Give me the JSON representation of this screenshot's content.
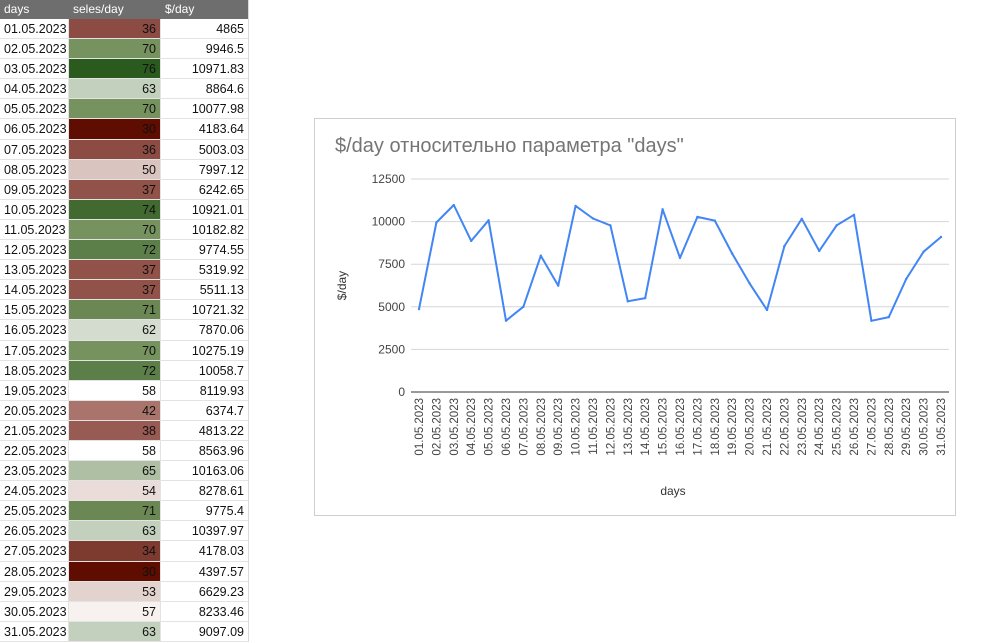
{
  "table": {
    "headers": [
      "days",
      "seles/day",
      "$/day"
    ],
    "rows": [
      {
        "day": "01.05.2023",
        "sales": "36",
        "usd": "4865",
        "color": "#8c4b43"
      },
      {
        "day": "02.05.2023",
        "sales": "70",
        "usd": "9946.5",
        "color": "#76925f"
      },
      {
        "day": "03.05.2023",
        "sales": "76",
        "usd": "10971.83",
        "color": "#2a5a1e"
      },
      {
        "day": "04.05.2023",
        "sales": "63",
        "usd": "8864.6",
        "color": "#c4d0be"
      },
      {
        "day": "05.05.2023",
        "sales": "70",
        "usd": "10077.98",
        "color": "#76925f"
      },
      {
        "day": "06.05.2023",
        "sales": "30",
        "usd": "4183.64",
        "color": "#5e0d00"
      },
      {
        "day": "07.05.2023",
        "sales": "36",
        "usd": "5003.03",
        "color": "#8c4b43"
      },
      {
        "day": "08.05.2023",
        "sales": "50",
        "usd": "7997.12",
        "color": "#d9c4bf"
      },
      {
        "day": "09.05.2023",
        "sales": "37",
        "usd": "6242.65",
        "color": "#915249"
      },
      {
        "day": "10.05.2023",
        "sales": "74",
        "usd": "10921.01",
        "color": "#42692f"
      },
      {
        "day": "11.05.2023",
        "sales": "70",
        "usd": "10182.82",
        "color": "#76925f"
      },
      {
        "day": "12.05.2023",
        "sales": "72",
        "usd": "9774.55",
        "color": "#5c7e48"
      },
      {
        "day": "13.05.2023",
        "sales": "37",
        "usd": "5319.92",
        "color": "#915249"
      },
      {
        "day": "14.05.2023",
        "sales": "37",
        "usd": "5511.13",
        "color": "#915249"
      },
      {
        "day": "15.05.2023",
        "sales": "71",
        "usd": "10721.32",
        "color": "#6a8754"
      },
      {
        "day": "16.05.2023",
        "sales": "62",
        "usd": "7870.06",
        "color": "#d3dccf"
      },
      {
        "day": "17.05.2023",
        "sales": "70",
        "usd": "10275.19",
        "color": "#76925f"
      },
      {
        "day": "18.05.2023",
        "sales": "72",
        "usd": "10058.7",
        "color": "#5c7e48"
      },
      {
        "day": "19.05.2023",
        "sales": "58",
        "usd": "8119.93",
        "color": "#ffffff"
      },
      {
        "day": "20.05.2023",
        "sales": "42",
        "usd": "6374.7",
        "color": "#a9746c"
      },
      {
        "day": "21.05.2023",
        "sales": "38",
        "usd": "4813.22",
        "color": "#975b53"
      },
      {
        "day": "22.05.2023",
        "sales": "58",
        "usd": "8563.96",
        "color": "#ffffff"
      },
      {
        "day": "23.05.2023",
        "sales": "65",
        "usd": "10163.06",
        "color": "#aebfa4"
      },
      {
        "day": "24.05.2023",
        "sales": "54",
        "usd": "8278.61",
        "color": "#eadcd8"
      },
      {
        "day": "25.05.2023",
        "sales": "71",
        "usd": "9775.4",
        "color": "#6a8754"
      },
      {
        "day": "26.05.2023",
        "sales": "63",
        "usd": "10397.97",
        "color": "#c4d0be"
      },
      {
        "day": "27.05.2023",
        "sales": "34",
        "usd": "4178.03",
        "color": "#7d3a2f"
      },
      {
        "day": "28.05.2023",
        "sales": "30",
        "usd": "4397.57",
        "color": "#5e0d00"
      },
      {
        "day": "29.05.2023",
        "sales": "53",
        "usd": "6629.23",
        "color": "#e3d3cf"
      },
      {
        "day": "30.05.2023",
        "sales": "57",
        "usd": "8233.46",
        "color": "#f7f1f0"
      },
      {
        "day": "31.05.2023",
        "sales": "63",
        "usd": "9097.09",
        "color": "#c4d0be"
      }
    ]
  },
  "chart_data": {
    "type": "line",
    "title": "$/day относительно параметра \"days\"",
    "xlabel": "days",
    "ylabel": "$/day",
    "ylim": [
      0,
      12500
    ],
    "yticks": [
      "0",
      "2500",
      "5000",
      "7500",
      "10000",
      "12500"
    ],
    "grid": true,
    "line_color": "#4285f4",
    "categories": [
      "01.05.2023",
      "02.05.2023",
      "03.05.2023",
      "04.05.2023",
      "05.05.2023",
      "06.05.2023",
      "07.05.2023",
      "08.05.2023",
      "09.05.2023",
      "10.05.2023",
      "11.05.2023",
      "12.05.2023",
      "13.05.2023",
      "14.05.2023",
      "15.05.2023",
      "16.05.2023",
      "17.05.2023",
      "18.05.2023",
      "19.05.2023",
      "20.05.2023",
      "21.05.2023",
      "22.05.2023",
      "23.05.2023",
      "24.05.2023",
      "25.05.2023",
      "26.05.2023",
      "27.05.2023",
      "28.05.2023",
      "29.05.2023",
      "30.05.2023",
      "31.05.2023"
    ],
    "series": [
      {
        "values": [
          4865,
          9946.5,
          10971.83,
          8864.6,
          10077.98,
          4183.64,
          5003.03,
          7997.12,
          6242.65,
          10921.01,
          10182.82,
          9774.55,
          5319.92,
          5511.13,
          10721.32,
          7870.06,
          10275.19,
          10058.7,
          8119.93,
          6374.7,
          4813.22,
          8563.96,
          10163.06,
          8278.61,
          9775.4,
          10397.97,
          4178.03,
          4397.57,
          6629.23,
          8233.46,
          9097.09
        ]
      }
    ]
  }
}
